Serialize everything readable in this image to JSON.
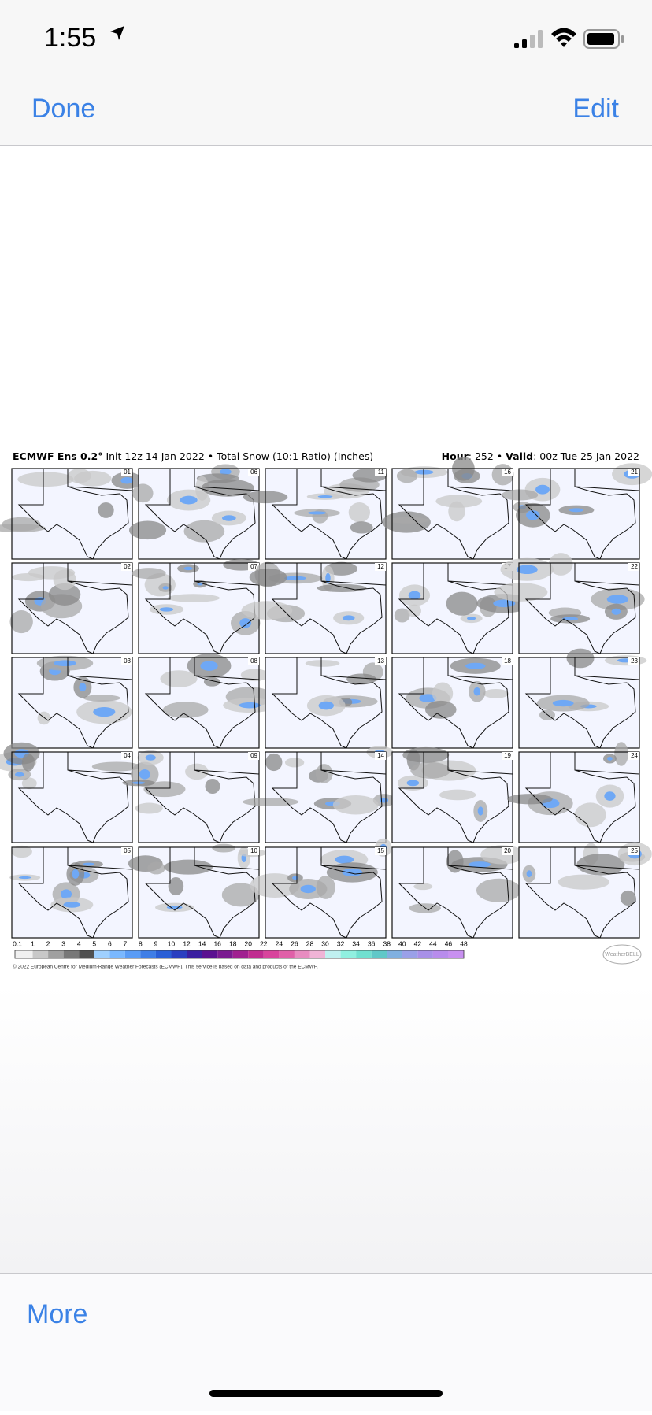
{
  "status_bar": {
    "time": "1:55"
  },
  "nav_bar": {
    "left": "Done",
    "right": "Edit"
  },
  "image": {
    "title_bold": "ECMWF Ens 0.2°",
    "title_rest": "Init 12z 14 Jan 2022 • Total Snow (10:1 Ratio) (Inches)",
    "hour_label": "Hour",
    "hour_value": ": 252 •",
    "valid_label": "Valid",
    "valid_value": ": 00z Tue 25 Jan 2022",
    "panels": [
      "01",
      "02",
      "03",
      "04",
      "05",
      "06",
      "07",
      "08",
      "09",
      "10",
      "11",
      "12",
      "13",
      "14",
      "15",
      "16",
      "17",
      "18",
      "19",
      "20",
      "21",
      "22",
      "23",
      "24",
      "25"
    ],
    "colorbar": {
      "labels": [
        "0.1",
        "1",
        "2",
        "3",
        "4",
        "5",
        "6",
        "7",
        "8",
        "9",
        "10",
        "12",
        "14",
        "16",
        "18",
        "20",
        "22",
        "24",
        "26",
        "28",
        "30",
        "32",
        "34",
        "36",
        "38",
        "40",
        "42",
        "44",
        "46",
        "48"
      ],
      "colors": [
        "#f0f0f0",
        "#c8c8c8",
        "#a0a0a0",
        "#787878",
        "#505050",
        "#9fd0ff",
        "#7ab8ff",
        "#5a9cf5",
        "#3f7ee6",
        "#2a5fd6",
        "#2a3fc0",
        "#3a1fa0",
        "#5a1090",
        "#7a1a90",
        "#a02090",
        "#c02c90",
        "#d8449c",
        "#e060a8",
        "#e88cc0",
        "#f0b4d6",
        "#c0f0f0",
        "#90f0e0",
        "#70e0d0",
        "#60c8c8",
        "#80b0e0",
        "#9aa0e8",
        "#a890e8",
        "#b88cec",
        "#c890f0",
        "#d8a0f4"
      ]
    },
    "copyright": "© 2022 European Centre for Medium-Range Weather Forecasts (ECMWF). This service is based on data and products of the ECMWF."
  },
  "toolbar": {
    "left": "More"
  }
}
